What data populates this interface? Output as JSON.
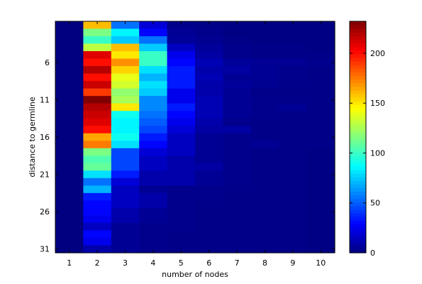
{
  "chart_data": {
    "type": "heatmap",
    "title": "",
    "xlabel": "number of nodes",
    "ylabel": "distance to germline",
    "colormap": "jet",
    "x": [
      1,
      2,
      3,
      4,
      5,
      6,
      7,
      8,
      9,
      10
    ],
    "y": [
      1,
      2,
      3,
      4,
      5,
      6,
      7,
      8,
      9,
      10,
      11,
      12,
      13,
      14,
      15,
      16,
      17,
      18,
      19,
      20,
      21,
      22,
      23,
      24,
      25,
      26,
      27,
      28,
      29,
      30,
      31
    ],
    "x_tick_labels": [
      "1",
      "2",
      "3",
      "4",
      "5",
      "6",
      "7",
      "8",
      "9",
      "10"
    ],
    "y_tick_labels": [
      "6",
      "11",
      "16",
      "21",
      "26",
      "31"
    ],
    "y_ticks": [
      6,
      11,
      16,
      21,
      26,
      31
    ],
    "colorbar": {
      "min": 0,
      "max": 232,
      "ticks": [
        0,
        50,
        100,
        150,
        200
      ],
      "tick_labels": [
        "0",
        "50",
        "100",
        "150",
        "200"
      ]
    },
    "values": [
      [
        0,
        160,
        55,
        20,
        3,
        2,
        1,
        1,
        1,
        1
      ],
      [
        0,
        115,
        85,
        30,
        5,
        3,
        1,
        1,
        1,
        1
      ],
      [
        0,
        100,
        75,
        55,
        6,
        4,
        2,
        1,
        1,
        1
      ],
      [
        0,
        130,
        160,
        75,
        15,
        6,
        3,
        2,
        2,
        1
      ],
      [
        0,
        210,
        150,
        100,
        25,
        8,
        3,
        2,
        2,
        2
      ],
      [
        0,
        200,
        170,
        100,
        30,
        12,
        6,
        5,
        5,
        3
      ],
      [
        0,
        220,
        155,
        80,
        35,
        10,
        8,
        5,
        3,
        2
      ],
      [
        0,
        200,
        140,
        70,
        35,
        12,
        5,
        5,
        3,
        2
      ],
      [
        0,
        215,
        135,
        80,
        35,
        10,
        6,
        4,
        2,
        2
      ],
      [
        0,
        190,
        120,
        75,
        25,
        10,
        5,
        2,
        2,
        2
      ],
      [
        0,
        232,
        125,
        60,
        25,
        12,
        5,
        3,
        2,
        2
      ],
      [
        0,
        220,
        150,
        60,
        35,
        12,
        5,
        3,
        5,
        2
      ],
      [
        0,
        215,
        90,
        55,
        30,
        12,
        5,
        3,
        2,
        2
      ],
      [
        0,
        210,
        85,
        50,
        25,
        10,
        3,
        2,
        2,
        2
      ],
      [
        0,
        200,
        85,
        45,
        20,
        8,
        8,
        2,
        2,
        2
      ],
      [
        0,
        165,
        90,
        35,
        15,
        5,
        3,
        2,
        2,
        2
      ],
      [
        0,
        175,
        80,
        30,
        15,
        5,
        3,
        5,
        2,
        2
      ],
      [
        0,
        115,
        45,
        20,
        15,
        5,
        3,
        2,
        2,
        1
      ],
      [
        0,
        105,
        45,
        15,
        10,
        5,
        3,
        2,
        2,
        1
      ],
      [
        0,
        110,
        45,
        15,
        10,
        8,
        3,
        2,
        2,
        1
      ],
      [
        0,
        80,
        35,
        10,
        10,
        5,
        3,
        2,
        2,
        1
      ],
      [
        0,
        55,
        20,
        10,
        10,
        5,
        3,
        2,
        2,
        1
      ],
      [
        0,
        70,
        15,
        5,
        3,
        3,
        2,
        2,
        2,
        1
      ],
      [
        0,
        35,
        15,
        10,
        3,
        3,
        2,
        2,
        2,
        1
      ],
      [
        0,
        30,
        15,
        10,
        3,
        2,
        2,
        2,
        2,
        1
      ],
      [
        0,
        30,
        10,
        5,
        3,
        2,
        2,
        2,
        2,
        1
      ],
      [
        0,
        25,
        10,
        5,
        3,
        2,
        2,
        2,
        2,
        1
      ],
      [
        0,
        15,
        5,
        3,
        3,
        2,
        2,
        2,
        2,
        1
      ],
      [
        0,
        30,
        5,
        3,
        2,
        2,
        2,
        2,
        2,
        1
      ],
      [
        0,
        25,
        5,
        3,
        2,
        2,
        2,
        2,
        2,
        1
      ],
      [
        0,
        10,
        5,
        3,
        2,
        2,
        2,
        2,
        2,
        1
      ]
    ]
  }
}
